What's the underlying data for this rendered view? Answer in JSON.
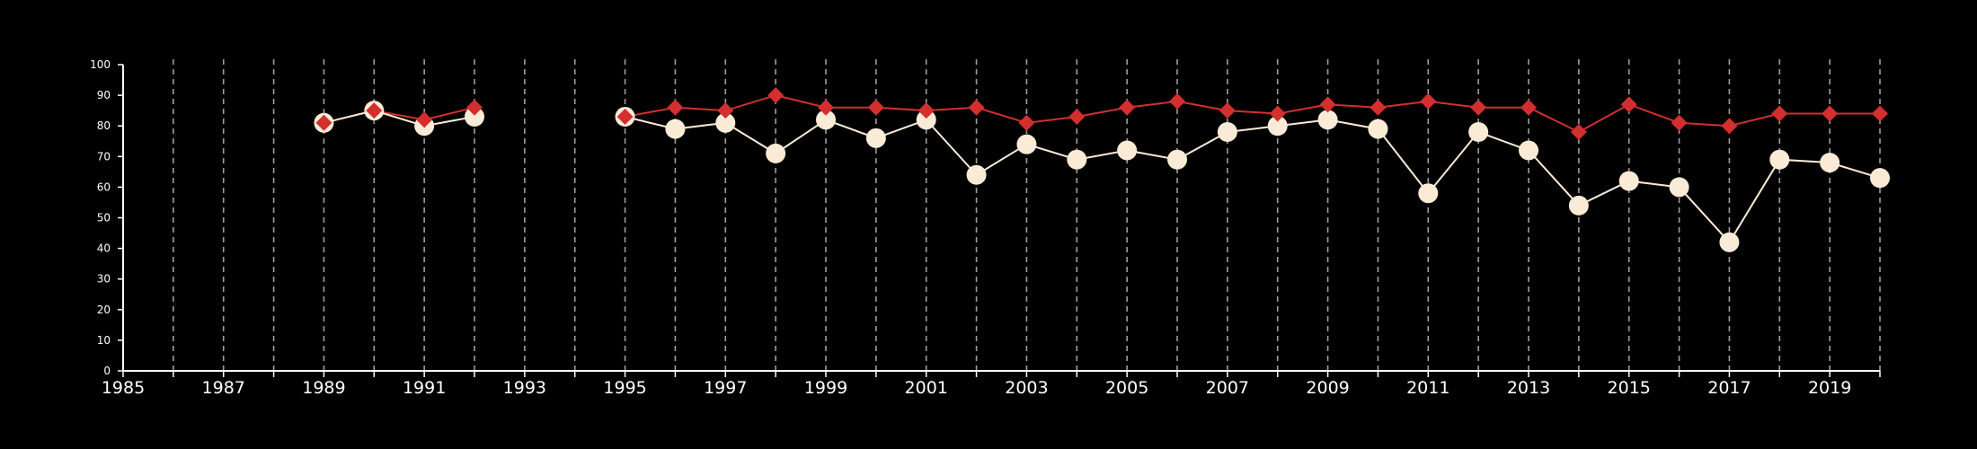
{
  "chart_data": {
    "type": "line",
    "title": "",
    "xlabel": "",
    "ylabel": "",
    "xlim": [
      1985,
      2020
    ],
    "ylim": [
      0,
      100
    ],
    "y_ticks": [
      0,
      10,
      20,
      30,
      40,
      50,
      60,
      70,
      80,
      90,
      100
    ],
    "x_tick_labels": [
      1985,
      1987,
      1989,
      1991,
      1993,
      1995,
      1997,
      1999,
      2001,
      2003,
      2005,
      2007,
      2009,
      2011,
      2013,
      2015,
      2017,
      2019
    ],
    "grid": "vertical dashed lines at each year",
    "legend": "none",
    "series": [
      {
        "marker": "diamond",
        "color": "#d32f2f",
        "x": [
          1989,
          1990,
          1991,
          1992,
          1995,
          1996,
          1997,
          1998,
          1999,
          2000,
          2001,
          2002,
          2003,
          2004,
          2005,
          2006,
          2007,
          2008,
          2009,
          2010,
          2011,
          2012,
          2013,
          2014,
          2015,
          2016,
          2017,
          2018,
          2019,
          2020
        ],
        "y": [
          81,
          85,
          82,
          86,
          83,
          86,
          85,
          90,
          86,
          86,
          85,
          86,
          81,
          83,
          86,
          88,
          85,
          84,
          87,
          86,
          88,
          86,
          86,
          78,
          87,
          81,
          80,
          84,
          84,
          84
        ]
      },
      {
        "marker": "circle",
        "color": "#faebd7",
        "x": [
          1989,
          1990,
          1991,
          1992,
          1995,
          1996,
          1997,
          1998,
          1999,
          2000,
          2001,
          2002,
          2003,
          2004,
          2005,
          2006,
          2007,
          2008,
          2009,
          2010,
          2011,
          2012,
          2013,
          2014,
          2015,
          2016,
          2017,
          2018,
          2019,
          2020
        ],
        "y": [
          81,
          85,
          80,
          83,
          83,
          79,
          81,
          71,
          82,
          76,
          82,
          64,
          74,
          69,
          72,
          69,
          78,
          80,
          82,
          79,
          58,
          78,
          72,
          54,
          62,
          60,
          42,
          69,
          68,
          63
        ]
      }
    ]
  }
}
